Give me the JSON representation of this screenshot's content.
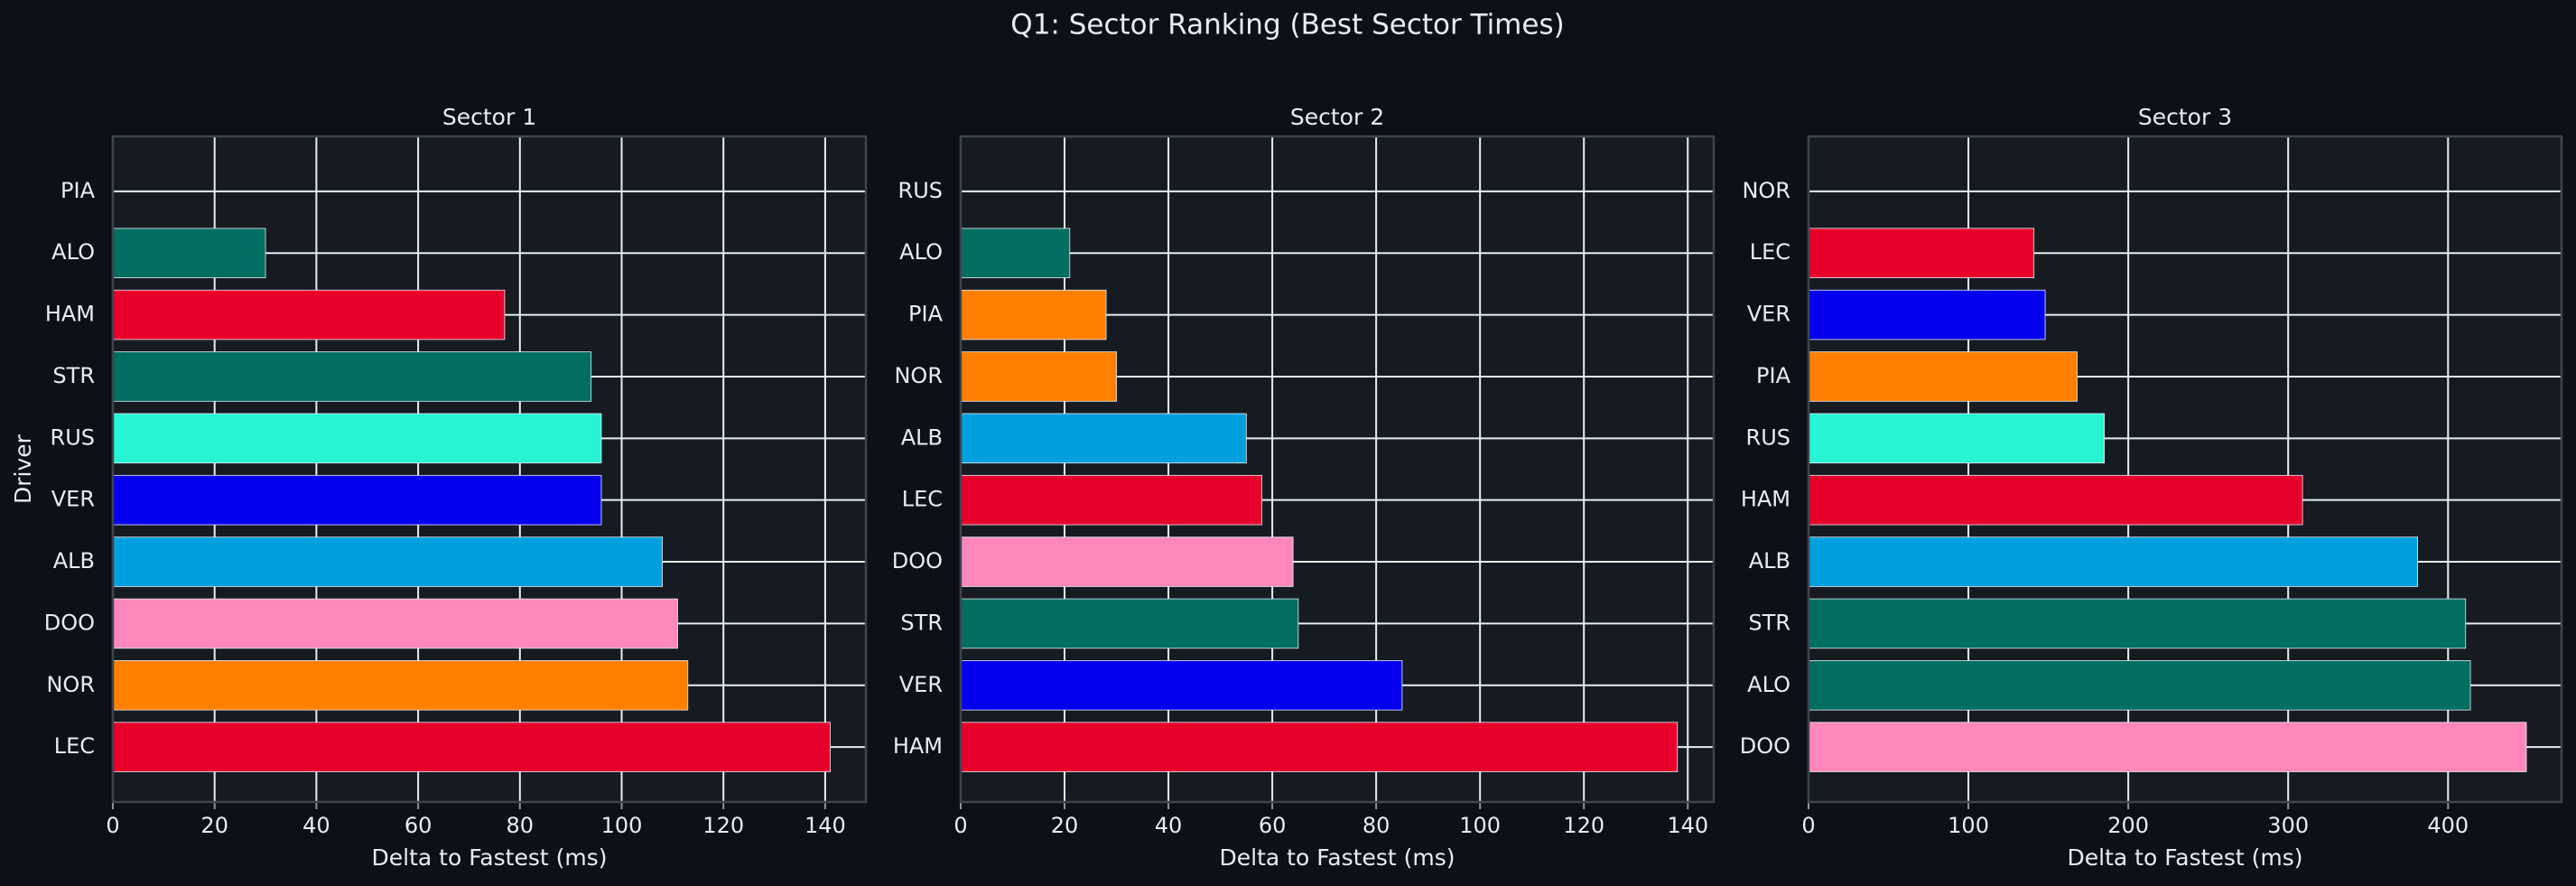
{
  "title": "Q1: Sector Ranking (Best Sector Times)",
  "chart_data": [
    {
      "type": "bar",
      "orientation": "horizontal",
      "title": "Sector 1",
      "x_label": "Delta to Fastest (ms)",
      "y_label": "Driver",
      "categories": [
        "PIA",
        "ALO",
        "HAM",
        "STR",
        "RUS",
        "VER",
        "ALB",
        "DOO",
        "NOR",
        "LEC"
      ],
      "values": [
        0,
        30,
        77,
        94,
        96,
        96,
        108,
        111,
        113,
        141
      ],
      "colors": [
        "#ff8000",
        "#006f62",
        "#e8002d",
        "#006f62",
        "#27f4d2",
        "#0600ef",
        "#00a0de",
        "#ff87bc",
        "#ff8000",
        "#e8002d"
      ],
      "xlim": [
        0,
        148
      ],
      "xticks": [
        0,
        20,
        40,
        60,
        80,
        100,
        120,
        140
      ],
      "grid": true
    },
    {
      "type": "bar",
      "orientation": "horizontal",
      "title": "Sector 2",
      "x_label": "Delta to Fastest (ms)",
      "categories": [
        "RUS",
        "ALO",
        "PIA",
        "NOR",
        "ALB",
        "LEC",
        "DOO",
        "STR",
        "VER",
        "HAM"
      ],
      "values": [
        0,
        21,
        28,
        30,
        55,
        58,
        64,
        65,
        85,
        138
      ],
      "colors": [
        "#27f4d2",
        "#006f62",
        "#ff8000",
        "#ff8000",
        "#00a0de",
        "#e8002d",
        "#ff87bc",
        "#006f62",
        "#0600ef",
        "#e8002d"
      ],
      "xlim": [
        0,
        145
      ],
      "xticks": [
        0,
        20,
        40,
        60,
        80,
        100,
        120,
        140
      ],
      "grid": true
    },
    {
      "type": "bar",
      "orientation": "horizontal",
      "title": "Sector 3",
      "x_label": "Delta to Fastest (ms)",
      "categories": [
        "NOR",
        "LEC",
        "VER",
        "PIA",
        "RUS",
        "HAM",
        "ALB",
        "STR",
        "ALO",
        "DOO"
      ],
      "values": [
        0,
        141,
        148,
        168,
        185,
        309,
        381,
        411,
        414,
        449
      ],
      "colors": [
        "#ff8000",
        "#e8002d",
        "#0600ef",
        "#ff8000",
        "#27f4d2",
        "#e8002d",
        "#00a0de",
        "#006f62",
        "#006f62",
        "#ff87bc"
      ],
      "xlim": [
        0,
        471
      ],
      "xticks": [
        0,
        100,
        200,
        300,
        400
      ],
      "grid": true
    }
  ]
}
